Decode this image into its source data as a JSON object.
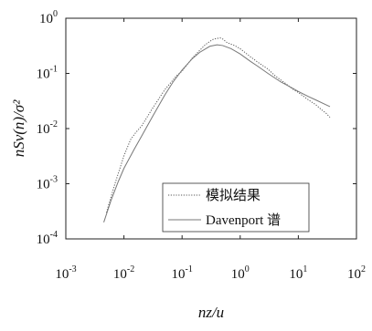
{
  "chart_data": {
    "type": "line",
    "xscale": "log",
    "yscale": "log",
    "xlabel": "nz/u",
    "ylabel": "nSv(n)/σ²",
    "xlim": [
      0.001,
      100
    ],
    "ylim": [
      0.0001,
      1
    ],
    "x_ticks": [
      {
        "base": "10",
        "exp": "-3",
        "value": 0.001
      },
      {
        "base": "10",
        "exp": "-2",
        "value": 0.01
      },
      {
        "base": "10",
        "exp": "-1",
        "value": 0.1
      },
      {
        "base": "10",
        "exp": "0",
        "value": 1
      },
      {
        "base": "10",
        "exp": "1",
        "value": 10
      },
      {
        "base": "10",
        "exp": "2",
        "value": 100
      }
    ],
    "y_ticks": [
      {
        "base": "10",
        "exp": "-4",
        "value": 0.0001
      },
      {
        "base": "10",
        "exp": "-3",
        "value": 0.001
      },
      {
        "base": "10",
        "exp": "-2",
        "value": 0.01
      },
      {
        "base": "10",
        "exp": "-1",
        "value": 0.1
      },
      {
        "base": "10",
        "exp": "0",
        "value": 1
      }
    ],
    "legend_position": "bottom-right",
    "grid": false,
    "series": [
      {
        "name": "模拟结果",
        "style": "dotted",
        "color": "#555555",
        "x": [
          0.005,
          0.007,
          0.01,
          0.013,
          0.016,
          0.02,
          0.03,
          0.05,
          0.08,
          0.1,
          0.15,
          0.2,
          0.25,
          0.3,
          0.35,
          0.4,
          0.45,
          0.5,
          0.6,
          0.8,
          1,
          1.5,
          2,
          3,
          4,
          6,
          8,
          10,
          15,
          20,
          25,
          30,
          35
        ],
        "y": [
          0.0003,
          0.001,
          0.0032,
          0.0063,
          0.0085,
          0.011,
          0.022,
          0.05,
          0.09,
          0.11,
          0.19,
          0.26,
          0.33,
          0.38,
          0.42,
          0.43,
          0.44,
          0.42,
          0.36,
          0.32,
          0.28,
          0.2,
          0.16,
          0.12,
          0.09,
          0.066,
          0.052,
          0.045,
          0.033,
          0.027,
          0.022,
          0.019,
          0.016
        ]
      },
      {
        "name": "Davenport 谱",
        "style": "solid",
        "color": "#777777",
        "x": [
          0.0045,
          0.006,
          0.008,
          0.01,
          0.015,
          0.02,
          0.03,
          0.05,
          0.07,
          0.1,
          0.15,
          0.2,
          0.3,
          0.4,
          0.5,
          0.7,
          1,
          1.5,
          2,
          3,
          5,
          7,
          10,
          15,
          20,
          30,
          35
        ],
        "y": [
          0.0002,
          0.0005,
          0.0011,
          0.0019,
          0.0042,
          0.0072,
          0.0155,
          0.04,
          0.07,
          0.115,
          0.185,
          0.24,
          0.31,
          0.33,
          0.32,
          0.28,
          0.225,
          0.165,
          0.135,
          0.1,
          0.07,
          0.058,
          0.047,
          0.038,
          0.033,
          0.027,
          0.025
        ]
      }
    ]
  }
}
